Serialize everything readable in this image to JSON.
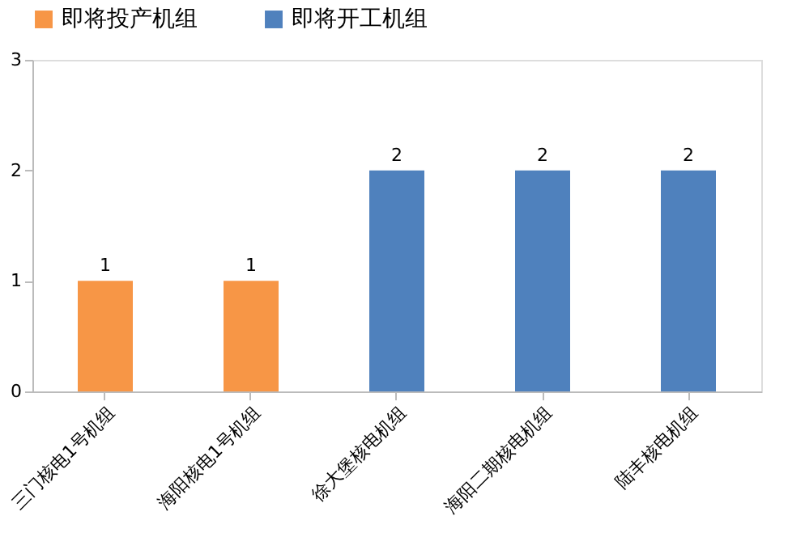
{
  "chart_data": {
    "type": "bar",
    "categories": [
      "三门核电1号机组",
      "海阳核电1号机组",
      "徐大堡核电机组",
      "海阳二期核电机组",
      "陆丰核电机组"
    ],
    "series": [
      {
        "name": "即将投产机组",
        "color": "#f79646",
        "values": [
          1,
          1,
          null,
          null,
          null
        ]
      },
      {
        "name": "即将开工机组",
        "color": "#4f81bd",
        "values": [
          null,
          null,
          2,
          2,
          2
        ]
      }
    ],
    "ylim": [
      0,
      3
    ],
    "yticks": [
      0,
      1,
      2,
      3
    ],
    "grid": false,
    "legend": "top",
    "data_labels": true
  }
}
